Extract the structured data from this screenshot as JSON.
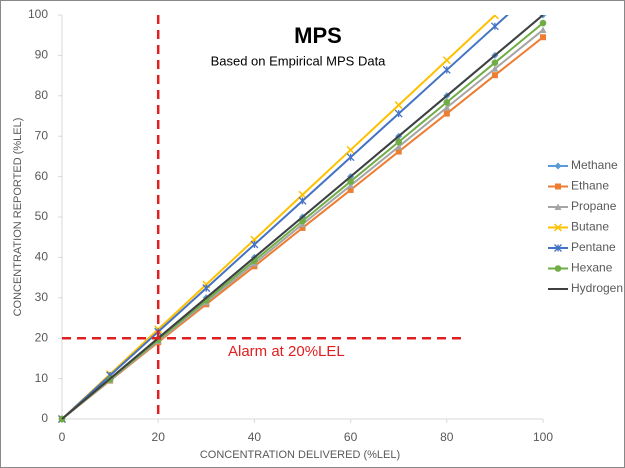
{
  "chart_data": {
    "type": "line",
    "title": "MPS",
    "subtitle": "Based on Empirical MPS Data",
    "annotation": "Alarm at 20%LEL",
    "x_label": "CONCENTRATION DELIVERED (%LEL)",
    "y_label": "CONCENTRATION REPORTED (%LEL)",
    "x": [
      0,
      10,
      20,
      30,
      40,
      50,
      60,
      70,
      80,
      90,
      100
    ],
    "series": [
      {
        "name": "Methane",
        "color": "#5b9bd5",
        "marker": "diamond",
        "values": [
          0,
          10,
          20,
          30,
          40,
          50,
          60,
          70,
          80,
          90,
          100
        ]
      },
      {
        "name": "Ethane",
        "color": "#ed7d31",
        "marker": "square",
        "values": [
          0,
          9.5,
          19,
          28.4,
          37.8,
          47.3,
          56.7,
          66.2,
          75.6,
          85.1,
          94.5
        ]
      },
      {
        "name": "Propane",
        "color": "#a5a5a5",
        "marker": "triangle",
        "values": [
          0,
          9.6,
          19.3,
          28.9,
          38.5,
          48.2,
          57.8,
          67.4,
          77.1,
          86.7,
          96.3
        ]
      },
      {
        "name": "Butane",
        "color": "#ffc000",
        "marker": "x",
        "values": [
          0,
          11.1,
          22.2,
          33.3,
          44.4,
          55.5,
          66.6,
          77.7,
          88.8,
          99.9,
          null
        ]
      },
      {
        "name": "Pentane",
        "color": "#4472c4",
        "marker": "star",
        "values": [
          0,
          10.8,
          21.6,
          32.4,
          43.2,
          54,
          64.8,
          75.6,
          86.4,
          97.2,
          108
        ]
      },
      {
        "name": "Hexane",
        "color": "#70ad47",
        "marker": "circle",
        "values": [
          0,
          9.8,
          19.6,
          29.4,
          39.2,
          49,
          58.8,
          68.6,
          78.4,
          88.2,
          98
        ]
      },
      {
        "name": "Hydrogen",
        "color": "#404040",
        "marker": "none",
        "values": [
          0,
          10,
          20,
          30,
          40,
          50,
          60,
          70,
          80,
          90,
          100
        ]
      }
    ],
    "xlim": [
      0,
      100
    ],
    "xticks": [
      0,
      20,
      40,
      60,
      80,
      100
    ],
    "ylim": [
      0,
      100
    ],
    "yticks": [
      0,
      10,
      20,
      30,
      40,
      50,
      60,
      70,
      80,
      90,
      100
    ],
    "reference_x": 20,
    "reference_y": 20,
    "reference_color": "#e02020",
    "grid": false,
    "legend": "right"
  }
}
